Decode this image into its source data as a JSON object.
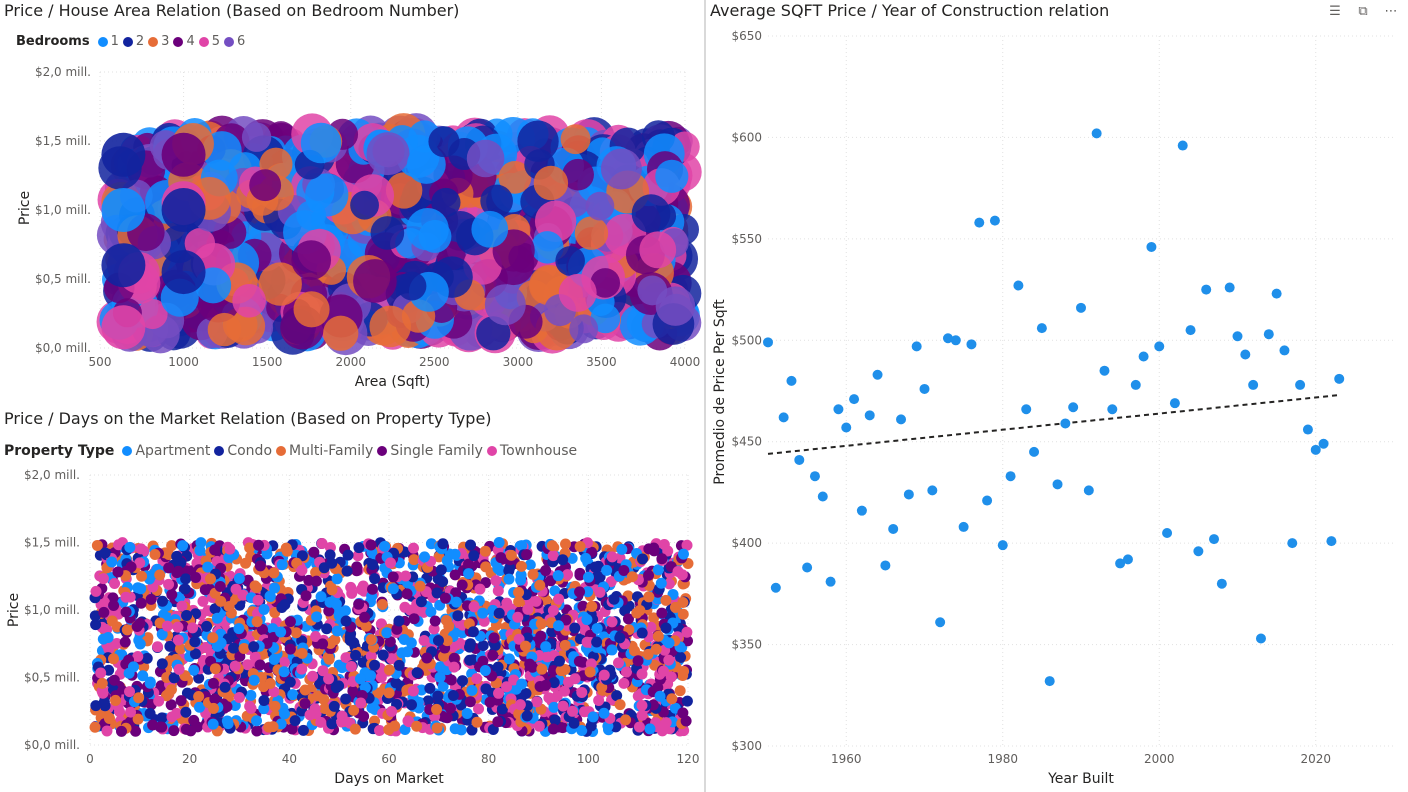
{
  "colors": {
    "c1": "#118DFF",
    "c2": "#12239E",
    "c3": "#E66C37",
    "c4": "#6B007B",
    "c5": "#E044A7",
    "c6": "#744EC2",
    "apartment": "#118DFF",
    "condo": "#12239E",
    "multi_family": "#E66C37",
    "single_family": "#6B007B",
    "townhouse": "#E044A7",
    "scatter_point": "#1F8FEA"
  },
  "header_icons": [
    "filter-icon",
    "focus-mode-icon",
    "more-options-icon"
  ],
  "chart1": {
    "title": "Price / House Area Relation (Based on Bedroom Number)",
    "legend_title": "Bedrooms",
    "legend": [
      "1",
      "2",
      "3",
      "4",
      "5",
      "6"
    ]
  },
  "chart2": {
    "title": "Price / Days on the Market Relation (Based on Property Type)",
    "legend_title": "Property Type",
    "legend": [
      "Apartment",
      "Condo",
      "Multi-Family",
      "Single Family",
      "Townhouse"
    ]
  },
  "chart3": {
    "title": "Average SQFT Price / Year of Construction relation"
  },
  "chart_data": [
    {
      "type": "scatter",
      "title": "Price / House Area Relation (Based on Bedroom Number)",
      "xlabel": "Area (Sqft)",
      "ylabel": "Price",
      "xlim": [
        500,
        4000
      ],
      "ylim": [
        0,
        2000000
      ],
      "x_ticks": [
        "500",
        "1000",
        "1500",
        "2000",
        "2500",
        "3000",
        "3500",
        "4000"
      ],
      "y_ticks": [
        "$0,0 mill.",
        "$0,5 mill.",
        "$1,0 mill.",
        "$1,5 mill.",
        "$2,0 mill."
      ],
      "series": [
        {
          "name": "1"
        },
        {
          "name": "2"
        },
        {
          "name": "3"
        },
        {
          "name": "4"
        },
        {
          "name": "5"
        },
        {
          "name": "6"
        }
      ],
      "note": "Dense overlapping bubbles covering area 600–4000 sqft and price 0.1–1.55 mill.",
      "x_range_observed": [
        600,
        4000
      ],
      "y_range_observed": [
        100000,
        1550000
      ],
      "grid": true,
      "legend_position": "top-left"
    },
    {
      "type": "scatter",
      "title": "Price / Days on the Market Relation (Based on Property Type)",
      "xlabel": "Days on Market",
      "ylabel": "Price",
      "xlim": [
        0,
        120
      ],
      "ylim": [
        0,
        2000000
      ],
      "x_ticks": [
        "0",
        "20",
        "40",
        "60",
        "80",
        "100",
        "120"
      ],
      "y_ticks": [
        "$0,0 mill.",
        "$0,5 mill.",
        "$1,0 mill.",
        "$1,5 mill.",
        "$2,0 mill."
      ],
      "series": [
        {
          "name": "Apartment"
        },
        {
          "name": "Condo"
        },
        {
          "name": "Multi-Family"
        },
        {
          "name": "Single Family"
        },
        {
          "name": "Townhouse"
        }
      ],
      "x_range_observed": [
        1,
        120
      ],
      "y_range_observed": [
        100000,
        1500000
      ],
      "grid": true,
      "legend_position": "top-left"
    },
    {
      "type": "scatter",
      "title": "Average SQFT Price / Year of Construction relation",
      "xlabel": "Year Built",
      "ylabel": "Promedio de Price Per Sqft",
      "xlim": [
        1950,
        2030
      ],
      "ylim": [
        300,
        650
      ],
      "x_ticks": [
        "1960",
        "1980",
        "2000",
        "2020"
      ],
      "y_ticks": [
        "$300",
        "$350",
        "$400",
        "$450",
        "$500",
        "$550",
        "$600",
        "$650"
      ],
      "grid": true,
      "trendline": {
        "x": [
          1950,
          2023
        ],
        "y": [
          444,
          473
        ]
      },
      "points": [
        [
          1950,
          499
        ],
        [
          1951,
          378
        ],
        [
          1952,
          462
        ],
        [
          1953,
          480
        ],
        [
          1954,
          441
        ],
        [
          1955,
          388
        ],
        [
          1956,
          433
        ],
        [
          1957,
          423
        ],
        [
          1958,
          381
        ],
        [
          1959,
          466
        ],
        [
          1960,
          457
        ],
        [
          1961,
          471
        ],
        [
          1962,
          416
        ],
        [
          1963,
          463
        ],
        [
          1964,
          483
        ],
        [
          1965,
          389
        ],
        [
          1966,
          407
        ],
        [
          1967,
          461
        ],
        [
          1968,
          424
        ],
        [
          1969,
          497
        ],
        [
          1970,
          476
        ],
        [
          1971,
          426
        ],
        [
          1972,
          361
        ],
        [
          1973,
          501
        ],
        [
          1974,
          500
        ],
        [
          1975,
          408
        ],
        [
          1976,
          498
        ],
        [
          1977,
          558
        ],
        [
          1978,
          421
        ],
        [
          1979,
          559
        ],
        [
          1980,
          399
        ],
        [
          1981,
          433
        ],
        [
          1982,
          527
        ],
        [
          1983,
          466
        ],
        [
          1984,
          445
        ],
        [
          1985,
          506
        ],
        [
          1986,
          332
        ],
        [
          1987,
          429
        ],
        [
          1988,
          459
        ],
        [
          1989,
          467
        ],
        [
          1990,
          516
        ],
        [
          1991,
          426
        ],
        [
          1992,
          602
        ],
        [
          1993,
          485
        ],
        [
          1994,
          466
        ],
        [
          1995,
          390
        ],
        [
          1996,
          392
        ],
        [
          1997,
          478
        ],
        [
          1998,
          492
        ],
        [
          1999,
          546
        ],
        [
          2000,
          497
        ],
        [
          2001,
          405
        ],
        [
          2002,
          469
        ],
        [
          2003,
          596
        ],
        [
          2004,
          505
        ],
        [
          2005,
          396
        ],
        [
          2006,
          525
        ],
        [
          2007,
          402
        ],
        [
          2008,
          380
        ],
        [
          2009,
          526
        ],
        [
          2010,
          502
        ],
        [
          2011,
          493
        ],
        [
          2012,
          478
        ],
        [
          2013,
          353
        ],
        [
          2014,
          503
        ],
        [
          2015,
          523
        ],
        [
          2016,
          495
        ],
        [
          2017,
          400
        ],
        [
          2018,
          478
        ],
        [
          2019,
          456
        ],
        [
          2020,
          446
        ],
        [
          2021,
          449
        ],
        [
          2022,
          401
        ],
        [
          2023,
          481
        ]
      ]
    }
  ]
}
